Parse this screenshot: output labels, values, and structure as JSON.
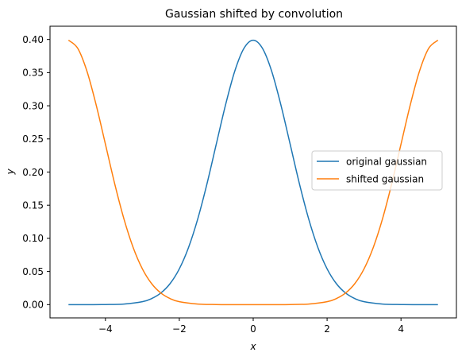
{
  "chart_data": {
    "type": "line",
    "title": "Gaussian shifted by convolution",
    "xlabel": "x",
    "ylabel": "y",
    "xlim": [
      -5.5,
      5.5
    ],
    "ylim": [
      -0.02,
      0.42
    ],
    "x_ticks": [
      -4,
      -2,
      0,
      2,
      4
    ],
    "x_tick_labels": [
      "−4",
      "−2",
      "0",
      "2",
      "4"
    ],
    "y_ticks": [
      0.0,
      0.05,
      0.1,
      0.15,
      0.2,
      0.25,
      0.3,
      0.35,
      0.4
    ],
    "y_tick_labels": [
      "0.00",
      "0.05",
      "0.10",
      "0.15",
      "0.20",
      "0.25",
      "0.30",
      "0.35",
      "0.40"
    ],
    "grid": false,
    "legend_position": "center-right",
    "series": [
      {
        "name": "original gaussian",
        "color": "#1f77b4",
        "x": [
          -5,
          -4.5,
          -4,
          -3.5,
          -3,
          -2.75,
          -2.5,
          -2.25,
          -2,
          -1.75,
          -1.5,
          -1.25,
          -1,
          -0.75,
          -0.5,
          -0.25,
          0,
          0.25,
          0.5,
          0.75,
          1,
          1.25,
          1.5,
          1.75,
          2,
          2.25,
          2.5,
          2.75,
          3,
          3.5,
          4,
          4.5,
          5
        ],
        "y": [
          0.0,
          0.0,
          0.0001,
          0.0009,
          0.0044,
          0.0091,
          0.0175,
          0.0317,
          0.054,
          0.0863,
          0.1295,
          0.1826,
          0.242,
          0.3011,
          0.3521,
          0.3867,
          0.3989,
          0.3867,
          0.3521,
          0.3011,
          0.242,
          0.1826,
          0.1295,
          0.0863,
          0.054,
          0.0317,
          0.0175,
          0.0091,
          0.0044,
          0.0009,
          0.0001,
          0.0,
          0.0
        ]
      },
      {
        "name": "shifted gaussian",
        "color": "#ff7f0e",
        "x": [
          -5,
          -4.75,
          -4.5,
          -4.25,
          -4,
          -3.75,
          -3.5,
          -3.25,
          -3,
          -2.75,
          -2.5,
          -2.25,
          -2,
          -1.5,
          -1,
          -0.5,
          0,
          0.5,
          1,
          1.5,
          2,
          2.25,
          2.5,
          2.75,
          3,
          3.25,
          3.5,
          3.75,
          4,
          4.25,
          4.5,
          4.75,
          5
        ],
        "y": [
          0.3989,
          0.3867,
          0.3521,
          0.3011,
          0.242,
          0.1826,
          0.1295,
          0.0863,
          0.054,
          0.0317,
          0.0175,
          0.0091,
          0.0044,
          0.0009,
          0.0001,
          0.0,
          0.0,
          0.0,
          0.0001,
          0.0009,
          0.0044,
          0.0091,
          0.0175,
          0.0317,
          0.054,
          0.0863,
          0.1295,
          0.1826,
          0.242,
          0.3011,
          0.3521,
          0.3867,
          0.3989
        ]
      }
    ]
  }
}
